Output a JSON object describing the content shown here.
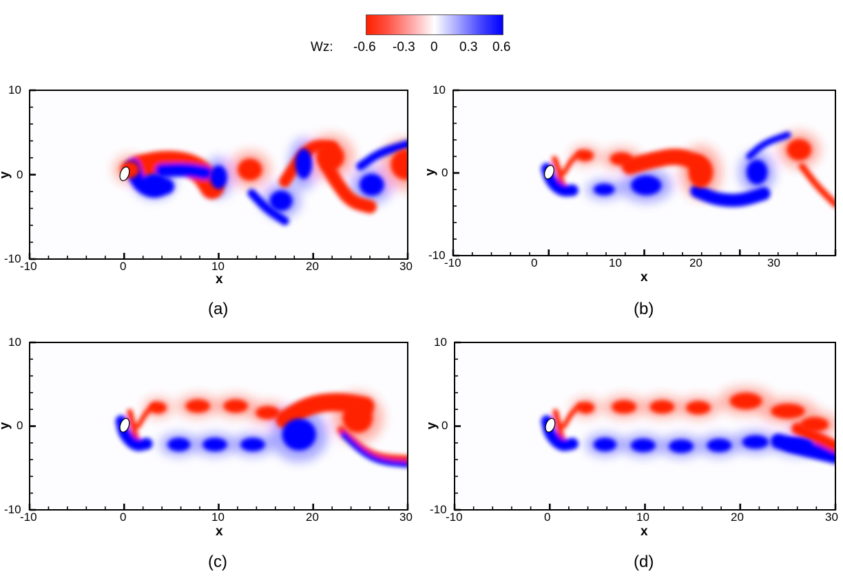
{
  "colorbar": {
    "variable": "Wz:",
    "ticks": [
      "-0.6",
      "-0.3",
      "0",
      "0.3",
      "0.6"
    ],
    "tick_values": [
      -0.6,
      -0.3,
      0,
      0.3,
      0.6
    ],
    "colors": {
      "negative": "#ff2000",
      "zero": "#ffffff",
      "positive": "#0000ff"
    }
  },
  "chart_data": [
    {
      "type": "heatmap",
      "panel": "a",
      "caption": "(a)",
      "title": "",
      "xlabel": "x",
      "ylabel": "y",
      "xlim": [
        -10,
        30
      ],
      "ylim": [
        -10,
        10
      ],
      "xticks": [
        -10,
        0,
        10,
        20,
        30
      ],
      "yticks": [
        -10,
        0,
        10
      ],
      "colorbar": {
        "label": "Wz",
        "range": [
          -0.6,
          0.6
        ]
      },
      "description": "Vorticity Wz contours: periodic vortex street shed from cylinder at origin, large alternating vortices with wake swinging up and down",
      "vortices": [
        {
          "x": 0.6,
          "y": 0.6,
          "rx": 1.0,
          "ry": 1.0,
          "sign": -1
        },
        {
          "x": 3.2,
          "y": -1.0,
          "rx": 1.3,
          "ry": 1.1,
          "sign": 1
        },
        {
          "x": 10.0,
          "y": -0.3,
          "rx": 0.9,
          "ry": 1.4,
          "sign": 1
        },
        {
          "x": 13.3,
          "y": 0.6,
          "rx": 1.3,
          "ry": 1.3,
          "sign": -1
        },
        {
          "x": 16.6,
          "y": -3.1,
          "rx": 1.2,
          "ry": 1.2,
          "sign": 1
        },
        {
          "x": 19.0,
          "y": 1.3,
          "rx": 0.9,
          "ry": 1.8,
          "sign": 1
        },
        {
          "x": 21.8,
          "y": 2.1,
          "rx": 1.5,
          "ry": 1.6,
          "sign": -1
        },
        {
          "x": 26.2,
          "y": -1.2,
          "rx": 1.3,
          "ry": 1.3,
          "sign": 1
        },
        {
          "x": 29.8,
          "y": 1.2,
          "rx": 1.6,
          "ry": 1.8,
          "sign": -1
        }
      ],
      "shear_layers": [
        {
          "sign": -1,
          "width": 1.4,
          "points": [
            [
              1.5,
              0.9
            ],
            [
              4,
              1.5
            ],
            [
              6.5,
              1.3
            ],
            [
              8.3,
              0.3
            ],
            [
              9.3,
              -1.5
            ]
          ]
        },
        {
          "sign": 1,
          "width": 0.9,
          "points": [
            [
              0.9,
              1.0
            ],
            [
              1.5,
              -1.0
            ],
            [
              3,
              -2.0
            ],
            [
              4.5,
              -1.4
            ]
          ]
        },
        {
          "sign": 1,
          "width": 0.8,
          "points": [
            [
              4,
              0.5
            ],
            [
              6.5,
              0.6
            ],
            [
              8.6,
              0.2
            ]
          ]
        },
        {
          "sign": -1,
          "width": 0.7,
          "points": [
            [
              17,
              -0.8
            ],
            [
              18.5,
              1.8
            ],
            [
              20,
              3.5
            ],
            [
              22,
              3.3
            ]
          ]
        },
        {
          "sign": -1,
          "width": 0.8,
          "points": [
            [
              21.5,
              1
            ],
            [
              22.5,
              -1
            ],
            [
              24,
              -3.2
            ],
            [
              26,
              -3.8
            ]
          ]
        },
        {
          "sign": 1,
          "width": 0.5,
          "points": [
            [
              13.5,
              -2.2
            ],
            [
              15,
              -4
            ],
            [
              17,
              -5.5
            ]
          ]
        },
        {
          "sign": 1,
          "width": 0.5,
          "points": [
            [
              25,
              1.0
            ],
            [
              27,
              2.6
            ],
            [
              30,
              3.6
            ]
          ]
        }
      ]
    },
    {
      "type": "heatmap",
      "panel": "b",
      "caption": "(b)",
      "title": "",
      "xlabel": "x",
      "ylabel": "y",
      "xlim": [
        -10,
        30
      ],
      "ylim": [
        -10,
        10
      ],
      "xticks": [
        -10,
        0,
        10,
        20,
        30
      ],
      "yticks": [
        -10,
        0,
        10
      ],
      "colorbar": {
        "label": "Wz",
        "range": [
          -0.6,
          0.6
        ]
      },
      "description": "Vorticity Wz: two-row wake near cylinder merging downstream into a large-scale oscillation",
      "vortices": [
        {
          "x": 3.8,
          "y": 2.1,
          "rx": 0.9,
          "ry": 0.7,
          "sign": -1
        },
        {
          "x": 7.6,
          "y": 1.7,
          "rx": 1.2,
          "ry": 0.8,
          "sign": -1
        },
        {
          "x": 5.8,
          "y": -2.0,
          "rx": 1.1,
          "ry": 0.7,
          "sign": 1
        },
        {
          "x": 10.2,
          "y": -1.5,
          "rx": 1.6,
          "ry": 1.2,
          "sign": 1
        },
        {
          "x": 15.9,
          "y": 0.1,
          "rx": 1.3,
          "ry": 1.9,
          "sign": -1
        },
        {
          "x": 21.8,
          "y": 0.1,
          "rx": 1.1,
          "ry": 1.5,
          "sign": 1
        },
        {
          "x": 26.2,
          "y": 2.8,
          "rx": 1.3,
          "ry": 1.3,
          "sign": -1
        }
      ],
      "shear_layers": [
        {
          "sign": -1,
          "width": 0.35,
          "points": [
            [
              0.6,
              1.7
            ],
            [
              1.0,
              0.5
            ],
            [
              1.3,
              -1.0
            ],
            [
              1.8,
              -2.1
            ]
          ]
        },
        {
          "sign": 1,
          "width": 0.7,
          "points": [
            [
              -0.2,
              0.5
            ],
            [
              0.2,
              -1.0
            ],
            [
              1.3,
              -2.2
            ],
            [
              2.5,
              -2.1
            ]
          ]
        },
        {
          "sign": -1,
          "width": 0.3,
          "points": [
            [
              1.6,
              0
            ],
            [
              2.4,
              1.6
            ],
            [
              3.3,
              2.4
            ]
          ]
        },
        {
          "sign": -1,
          "width": 1.0,
          "points": [
            [
              8.5,
              0.8
            ],
            [
              11,
              1.6
            ],
            [
              13.5,
              2.1
            ],
            [
              15.5,
              1.3
            ]
          ]
        },
        {
          "sign": 1,
          "width": 0.8,
          "points": [
            [
              15.5,
              -2.2
            ],
            [
              17.5,
              -3.2
            ],
            [
              20,
              -3.4
            ],
            [
              22.5,
              -2.5
            ]
          ]
        },
        {
          "sign": 1,
          "width": 0.4,
          "points": [
            [
              21,
              2
            ],
            [
              22.5,
              3.6
            ],
            [
              25,
              4.6
            ]
          ]
        },
        {
          "sign": -1,
          "width": 0.4,
          "points": [
            [
              26.5,
              0.8
            ],
            [
              28,
              -1.5
            ],
            [
              30,
              -3.8
            ]
          ]
        }
      ]
    },
    {
      "type": "heatmap",
      "panel": "c",
      "caption": "(c)",
      "title": "",
      "xlabel": "x",
      "ylabel": "y",
      "xlim": [
        -10,
        30
      ],
      "ylim": [
        -10,
        10
      ],
      "xticks": [
        -10,
        0,
        10,
        20,
        30
      ],
      "yticks": [
        -10,
        0,
        10
      ],
      "colorbar": {
        "label": "Wz",
        "range": [
          -0.6,
          0.6
        ]
      },
      "description": "Vorticity Wz: stable two-row vortex street (red upper, blue lower) up to x~16, then one large-scale swing",
      "vortices": [
        {
          "x": 3.6,
          "y": 2.2,
          "rx": 0.9,
          "ry": 0.7,
          "sign": -1
        },
        {
          "x": 7.8,
          "y": 2.4,
          "rx": 1.3,
          "ry": 0.8,
          "sign": -1
        },
        {
          "x": 11.8,
          "y": 2.4,
          "rx": 1.3,
          "ry": 0.8,
          "sign": -1
        },
        {
          "x": 15.2,
          "y": 1.6,
          "rx": 1.3,
          "ry": 0.8,
          "sign": -1
        },
        {
          "x": 5.8,
          "y": -2.2,
          "rx": 1.2,
          "ry": 0.8,
          "sign": 1
        },
        {
          "x": 9.6,
          "y": -2.2,
          "rx": 1.3,
          "ry": 0.8,
          "sign": 1
        },
        {
          "x": 13.6,
          "y": -2.2,
          "rx": 1.3,
          "ry": 0.8,
          "sign": 1
        },
        {
          "x": 18.5,
          "y": -1.0,
          "rx": 1.8,
          "ry": 1.9,
          "sign": 1
        },
        {
          "x": 24.7,
          "y": 1.0,
          "rx": 1.6,
          "ry": 1.8,
          "sign": -1
        }
      ],
      "shear_layers": [
        {
          "sign": -1,
          "width": 0.35,
          "points": [
            [
              0.6,
              1.7
            ],
            [
              0.9,
              0.3
            ],
            [
              1.2,
              -1.2
            ],
            [
              1.6,
              -2.3
            ]
          ]
        },
        {
          "sign": 1,
          "width": 0.7,
          "points": [
            [
              -0.3,
              0.6
            ],
            [
              0,
              -1.0
            ],
            [
              1.2,
              -2.4
            ],
            [
              2.4,
              -2.1
            ]
          ]
        },
        {
          "sign": -1,
          "width": 0.3,
          "points": [
            [
              1.5,
              0
            ],
            [
              2.3,
              1.6
            ],
            [
              3.2,
              2.5
            ]
          ]
        },
        {
          "sign": -1,
          "width": 1.1,
          "points": [
            [
              17,
              0.8
            ],
            [
              19.5,
              2.5
            ],
            [
              22.5,
              3.0
            ],
            [
              25.5,
              2.4
            ]
          ]
        },
        {
          "sign": -1,
          "width": 0.5,
          "points": [
            [
              23,
              -0.5
            ],
            [
              25,
              -2.7
            ],
            [
              27,
              -3.8
            ],
            [
              30,
              -4.0
            ]
          ]
        },
        {
          "sign": 1,
          "width": 0.35,
          "points": [
            [
              23.2,
              -1.0
            ],
            [
              25.2,
              -3.2
            ],
            [
              27.2,
              -4.3
            ],
            [
              30,
              -4.6
            ]
          ]
        }
      ]
    },
    {
      "type": "heatmap",
      "panel": "d",
      "caption": "(d)",
      "title": "",
      "xlabel": "x",
      "ylabel": "y",
      "xlim": [
        -10,
        30
      ],
      "ylim": [
        -10,
        10
      ],
      "xticks": [
        -10,
        0,
        10,
        20,
        30
      ],
      "yticks": [
        -10,
        0,
        10
      ],
      "colorbar": {
        "label": "Wz",
        "range": [
          -0.6,
          0.6
        ]
      },
      "description": "Vorticity Wz: long stable two-row vortex street (red upper, blue lower) persisting to x~25, bending downward near x=30",
      "vortices": [
        {
          "x": 3.8,
          "y": 2.2,
          "rx": 0.9,
          "ry": 0.7,
          "sign": -1
        },
        {
          "x": 7.8,
          "y": 2.3,
          "rx": 1.3,
          "ry": 0.8,
          "sign": -1
        },
        {
          "x": 11.8,
          "y": 2.3,
          "rx": 1.3,
          "ry": 0.8,
          "sign": -1
        },
        {
          "x": 15.6,
          "y": 2.2,
          "rx": 1.3,
          "ry": 0.8,
          "sign": -1
        },
        {
          "x": 20.6,
          "y": 3.0,
          "rx": 1.7,
          "ry": 1.0,
          "sign": -1
        },
        {
          "x": 25.0,
          "y": 1.8,
          "rx": 1.8,
          "ry": 0.9,
          "sign": -1
        },
        {
          "x": 27.8,
          "y": 0.2,
          "rx": 1.5,
          "ry": 0.9,
          "sign": -1
        },
        {
          "x": 5.8,
          "y": -2.2,
          "rx": 1.2,
          "ry": 0.8,
          "sign": 1
        },
        {
          "x": 9.8,
          "y": -2.3,
          "rx": 1.3,
          "ry": 0.8,
          "sign": 1
        },
        {
          "x": 13.8,
          "y": -2.4,
          "rx": 1.3,
          "ry": 0.8,
          "sign": 1
        },
        {
          "x": 17.8,
          "y": -2.3,
          "rx": 1.3,
          "ry": 0.8,
          "sign": 1
        },
        {
          "x": 21.6,
          "y": -1.9,
          "rx": 1.4,
          "ry": 0.8,
          "sign": 1
        },
        {
          "x": 26.0,
          "y": -2.2,
          "rx": 1.6,
          "ry": 0.8,
          "sign": 1
        }
      ],
      "shear_layers": [
        {
          "sign": -1,
          "width": 0.35,
          "points": [
            [
              0.6,
              1.7
            ],
            [
              0.9,
              0.3
            ],
            [
              1.2,
              -1.2
            ],
            [
              1.6,
              -2.3
            ]
          ]
        },
        {
          "sign": 1,
          "width": 0.7,
          "points": [
            [
              -0.3,
              0.6
            ],
            [
              0,
              -1.0
            ],
            [
              1.2,
              -2.4
            ],
            [
              2.4,
              -2.1
            ]
          ]
        },
        {
          "sign": -1,
          "width": 0.3,
          "points": [
            [
              1.5,
              0
            ],
            [
              2.3,
              1.6
            ],
            [
              3.2,
              2.5
            ]
          ]
        },
        {
          "sign": 1,
          "width": 0.9,
          "points": [
            [
              24,
              -1.8
            ],
            [
              27,
              -2.8
            ],
            [
              30,
              -3.6
            ]
          ]
        },
        {
          "sign": -1,
          "width": 0.7,
          "points": [
            [
              26,
              -0.3
            ],
            [
              28.5,
              -1.6
            ],
            [
              30,
              -2.4
            ]
          ]
        }
      ]
    }
  ],
  "panels": [
    {
      "id": "a",
      "caption": "(a)",
      "xlabel": "x",
      "ylabel": "y",
      "xtick_labels": [
        "-10",
        "0",
        "10",
        "20",
        "30"
      ],
      "ytick_labels": [
        "10",
        "0",
        "-10"
      ]
    },
    {
      "id": "b",
      "caption": "(b)",
      "xlabel": "x",
      "ylabel": "y",
      "xtick_labels": [
        "-10",
        "0",
        "10",
        "20",
        "30"
      ],
      "ytick_labels": [
        "10",
        "0",
        "-10"
      ]
    },
    {
      "id": "c",
      "caption": "(c)",
      "xlabel": "x",
      "ylabel": "y",
      "xtick_labels": [
        "-10",
        "0",
        "10",
        "20",
        "30"
      ],
      "ytick_labels": [
        "10",
        "0",
        "-10"
      ]
    },
    {
      "id": "d",
      "caption": "(d)",
      "xlabel": "x",
      "ylabel": "y",
      "xtick_labels": [
        "-10",
        "0",
        "10",
        "20",
        "30"
      ],
      "ytick_labels": [
        "10",
        "0",
        "-10"
      ]
    }
  ]
}
